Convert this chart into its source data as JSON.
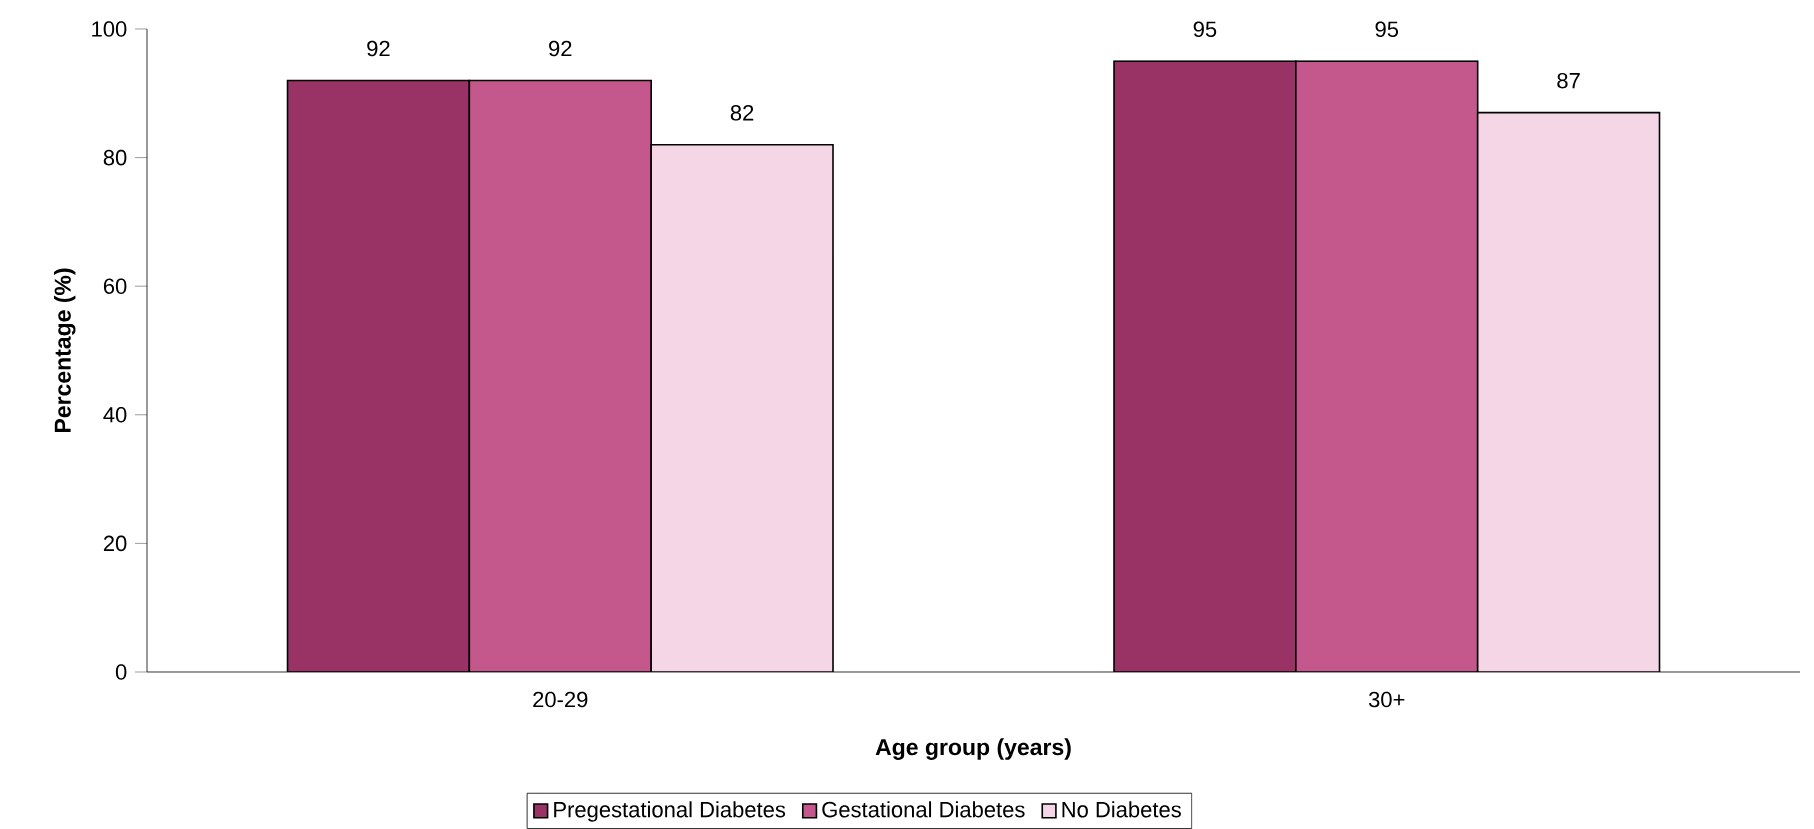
{
  "chart_data": {
    "type": "bar",
    "xlabel": "Age group (years)",
    "ylabel": "Percentage (%)",
    "categories": [
      "20-29",
      "30+"
    ],
    "series": [
      {
        "name": "Pregestational Diabetes",
        "color": "#993366",
        "values": [
          92,
          95
        ]
      },
      {
        "name": "Gestational Diabetes",
        "color": "#c4588d",
        "values": [
          92,
          95
        ]
      },
      {
        "name": "No Diabetes",
        "color": "#f5d6e6",
        "values": [
          82,
          87
        ]
      }
    ],
    "ylim": [
      0,
      100
    ],
    "yticks": [
      0,
      20,
      40,
      60,
      80,
      100
    ],
    "data_labels": true,
    "grid": false,
    "legend": "bottom"
  }
}
